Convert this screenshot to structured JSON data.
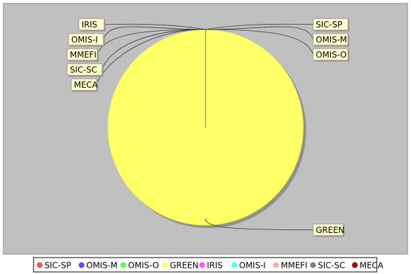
{
  "chart_data": {
    "type": "pie",
    "title": "",
    "colors": {
      "plot_background": "#c0c0c0",
      "label_box_fill": "#ffffcc",
      "label_box_stroke": "#888888"
    },
    "series": [
      {
        "name": "SIC-SP",
        "value": 0,
        "color": "#ff5555"
      },
      {
        "name": "OMIS-M",
        "value": 0,
        "color": "#5555ff"
      },
      {
        "name": "OMIS-O",
        "value": 0,
        "color": "#55ff55"
      },
      {
        "name": "GREEN",
        "value": 100,
        "color": "#ffff66"
      },
      {
        "name": "IRIS",
        "value": 0,
        "color": "#ff55ff"
      },
      {
        "name": "OMIS-I",
        "value": 0,
        "color": "#55ffff"
      },
      {
        "name": "MMEFI",
        "value": 0,
        "color": "#ffaaaa"
      },
      {
        "name": "SIC-SC",
        "value": 0,
        "color": "#808080"
      },
      {
        "name": "MECA",
        "value": 0,
        "color": "#aa0000"
      }
    ],
    "legend_position": "bottom"
  }
}
